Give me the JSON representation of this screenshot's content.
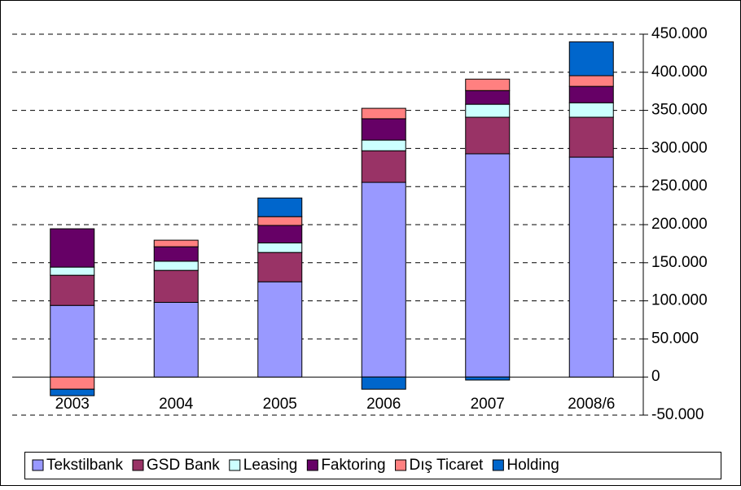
{
  "chart_data": {
    "type": "bar",
    "stacked": true,
    "categories": [
      "2003",
      "2004",
      "2005",
      "2006",
      "2007",
      "2008/6"
    ],
    "series": [
      {
        "name": "Tekstilbank",
        "color": "#9999ff",
        "values": [
          94000,
          98000,
          125000,
          255500,
          293000,
          288600
        ]
      },
      {
        "name": "GSD Bank",
        "color": "#993366",
        "values": [
          39600,
          42000,
          38500,
          41500,
          48000,
          52400
        ]
      },
      {
        "name": "Leasing",
        "color": "#ccffff",
        "values": [
          10700,
          12000,
          12500,
          14000,
          17000,
          19000
        ]
      },
      {
        "name": "Faktoring",
        "color": "#660066",
        "values": [
          50300,
          19000,
          23000,
          28000,
          18000,
          21500
        ]
      },
      {
        "name": "Dış Ticaret",
        "color": "#ff8080",
        "values": [
          -16000,
          8600,
          11500,
          13700,
          15000,
          14000
        ]
      },
      {
        "name": "Holding",
        "color": "#0066cc",
        "values": [
          -8500,
          0,
          24500,
          -16000,
          -4000,
          44500
        ]
      }
    ],
    "ylim": [
      -50000,
      450000
    ],
    "yticks": [
      {
        "value": -50000,
        "label": "-50.000"
      },
      0,
      {
        "value": 50000,
        "label": "50.000"
      },
      {
        "value": 100000,
        "label": "100.000"
      },
      {
        "value": 150000,
        "label": "150.000"
      },
      {
        "value": 200000,
        "label": "200.000"
      },
      {
        "value": 250000,
        "label": "250.000"
      },
      {
        "value": 300000,
        "label": "300.000"
      },
      {
        "value": 350000,
        "label": "350.000"
      },
      {
        "value": 400000,
        "label": "400.000"
      },
      {
        "value": 450000,
        "label": "450.000"
      }
    ],
    "grid": true,
    "legend": "bottom"
  }
}
